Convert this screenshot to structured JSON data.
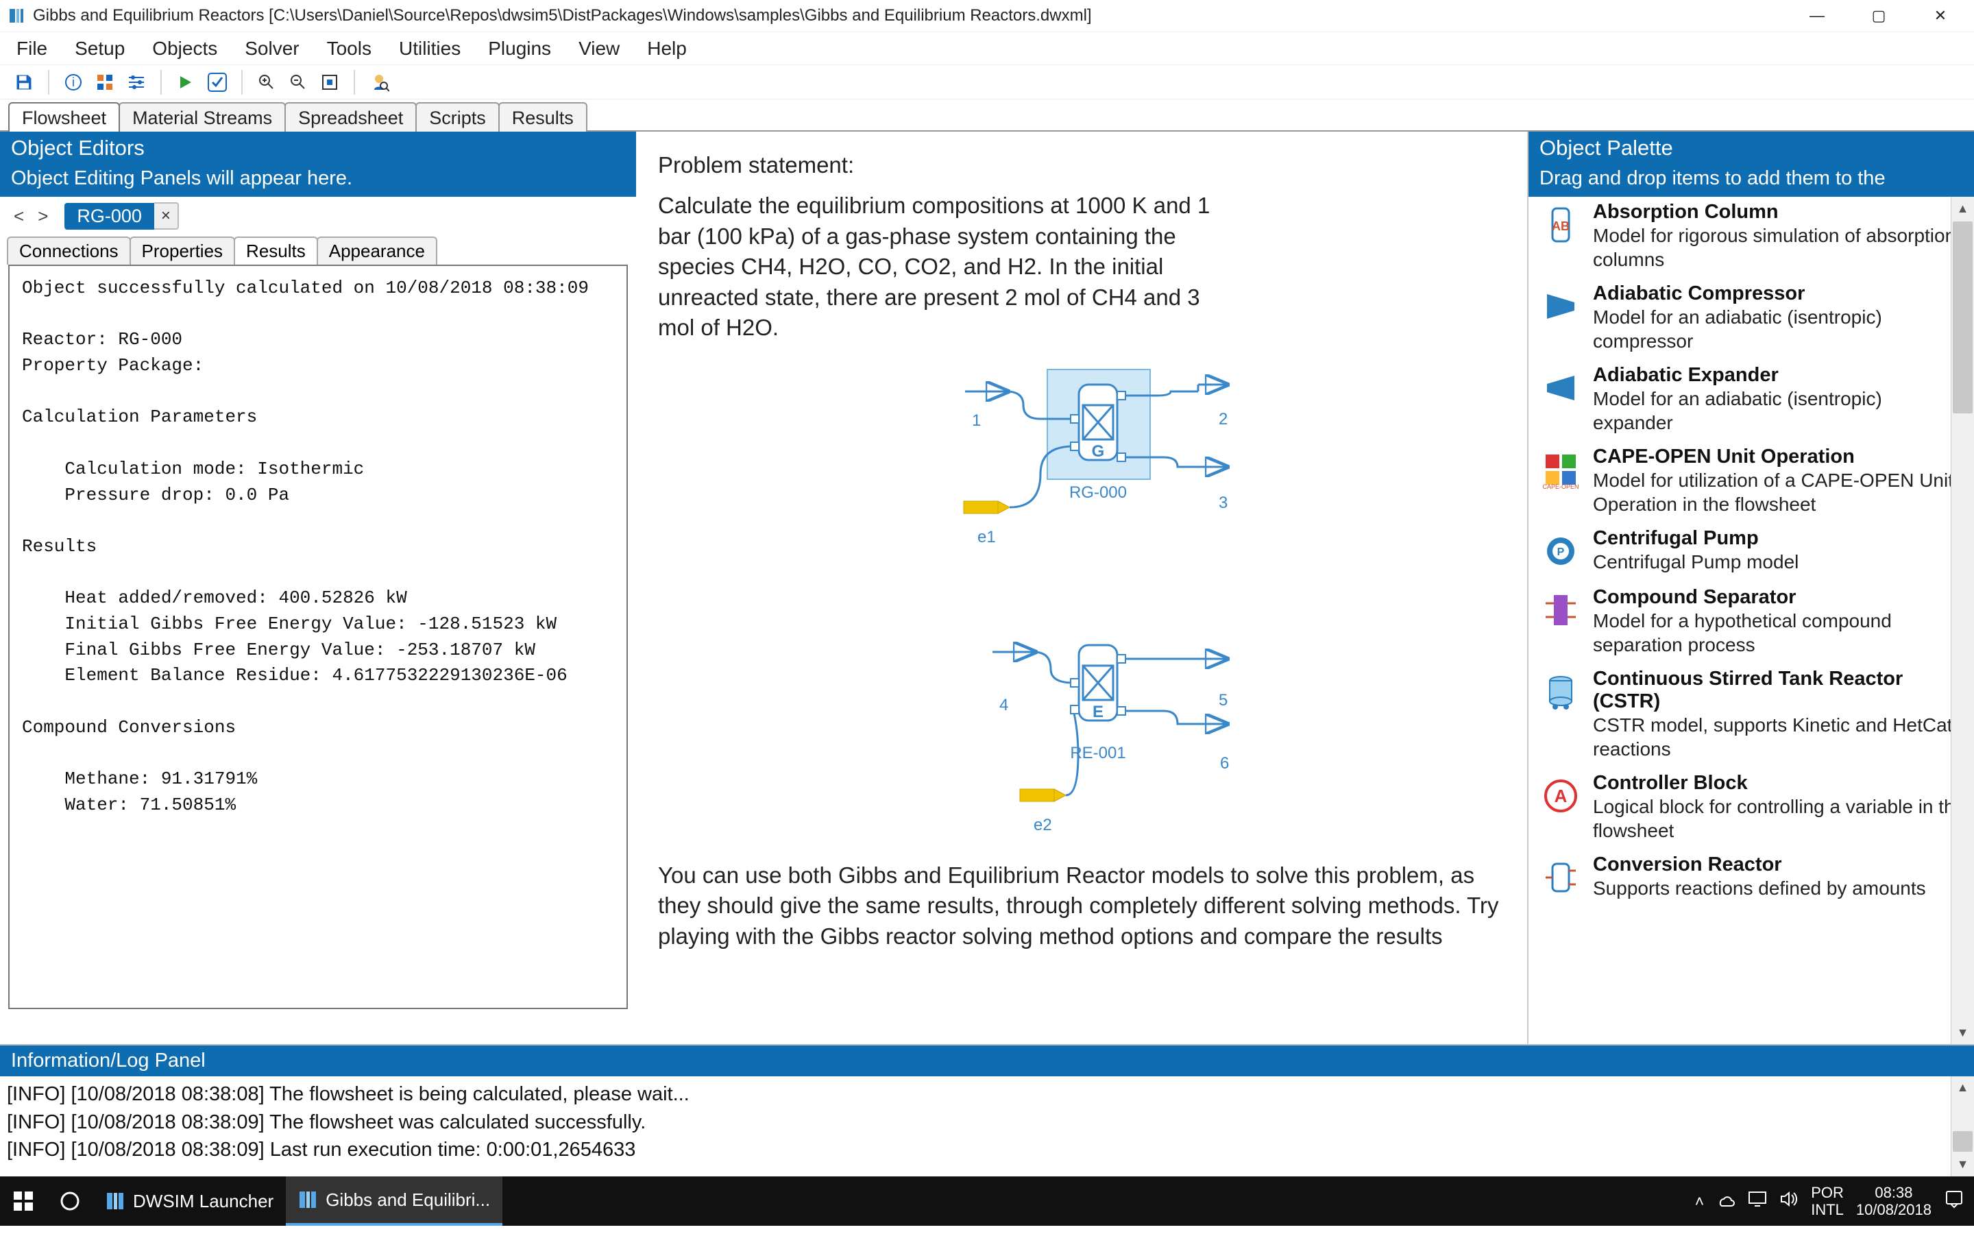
{
  "window": {
    "title": "Gibbs and Equilibrium Reactors [C:\\Users\\Daniel\\Source\\Repos\\dwsim5\\DistPackages\\Windows\\samples\\Gibbs and Equilibrium Reactors.dwxml]"
  },
  "menus": [
    "File",
    "Setup",
    "Objects",
    "Solver",
    "Tools",
    "Utilities",
    "Plugins",
    "View",
    "Help"
  ],
  "main_tabs": [
    "Flowsheet",
    "Material Streams",
    "Spreadsheet",
    "Scripts",
    "Results"
  ],
  "main_tab_active": 0,
  "editor": {
    "header": "Object Editors",
    "sub": "Object Editing Panels will appear here.",
    "nav_label": "RG-000",
    "sub_tabs": [
      "Connections",
      "Properties",
      "Results",
      "Appearance"
    ],
    "sub_tab_active": 2,
    "results_text": "Object successfully calculated on 10/08/2018 08:38:09\n\nReactor: RG-000\nProperty Package:\n\nCalculation Parameters\n\n    Calculation mode: Isothermic\n    Pressure drop: 0.0 Pa\n\nResults\n\n    Heat added/removed: 400.52826 kW\n    Initial Gibbs Free Energy Value: -128.51523 kW\n    Final Gibbs Free Energy Value: -253.18707 kW\n    Element Balance Residue: 4.6177532229130236E-06\n\nCompound Conversions\n\n    Methane: 91.31791%\n    Water: 71.50851%"
  },
  "problem": {
    "title": "Problem statement:",
    "p1": "Calculate the equilibrium compositions at 1000 K and 1 bar (100 kPa) of a gas-phase system containing the species CH4, H2O, CO, CO2, and H2. In the initial unreacted state, there are present 2 mol of CH4 and 3 mol of H2O.",
    "p2": "You can use both Gibbs and Equilibrium Reactor models to solve this problem, as they should give the same results, through completely different solving methods. Try playing with the Gibbs reactor solving method options and compare the results",
    "labels": {
      "s1": "1",
      "s2": "2",
      "s3": "3",
      "s4": "4",
      "s5": "5",
      "s6": "6",
      "e1": "e1",
      "e2": "e2",
      "rg": "RG-000",
      "re": "RE-001",
      "g": "G",
      "e": "E"
    }
  },
  "palette": {
    "header": "Object Palette",
    "sub": "Drag and drop items to add them to the",
    "items": [
      {
        "title": "Absorption Column",
        "desc": "Model for rigorous simulation of absorption columns",
        "icon": "abs"
      },
      {
        "title": "Adiabatic Compressor",
        "desc": "Model for an adiabatic (isentropic) compressor",
        "icon": "comp"
      },
      {
        "title": "Adiabatic Expander",
        "desc": "Model for an adiabatic (isentropic) expander",
        "icon": "exp"
      },
      {
        "title": "CAPE-OPEN Unit Operation",
        "desc": "Model for utilization of a CAPE-OPEN Unit Operation in the flowsheet",
        "icon": "cape"
      },
      {
        "title": "Centrifugal Pump",
        "desc": "Centrifugal Pump model",
        "icon": "pump"
      },
      {
        "title": "Compound Separator",
        "desc": "Model for a hypothetical compound separation process",
        "icon": "sep"
      },
      {
        "title": "Continuous Stirred Tank Reactor (CSTR)",
        "desc": "CSTR model, supports Kinetic and HetCat reactions",
        "icon": "cstr"
      },
      {
        "title": "Controller Block",
        "desc": "Logical block for controlling a variable in the flowsheet",
        "icon": "ctrl"
      },
      {
        "title": "Conversion Reactor",
        "desc": "Supports reactions defined by amounts",
        "icon": "conv"
      }
    ]
  },
  "log": {
    "header": "Information/Log Panel",
    "lines": [
      "[INFO] [10/08/2018 08:38:08] The flowsheet is being calculated, please wait...",
      "[INFO] [10/08/2018 08:38:09] The flowsheet was calculated successfully.",
      "[INFO] [10/08/2018 08:38:09] Last run execution time: 0:00:01,2654633"
    ]
  },
  "taskbar": {
    "items": [
      "DWSIM Launcher",
      "Gibbs and Equilibri..."
    ],
    "lang": "POR",
    "kb": "INTL",
    "time": "08:38",
    "date": "10/08/2018"
  },
  "colors": {
    "brand": "#0e6db0",
    "stream": "#3a87c9",
    "energy": "#f0c300",
    "text": "#222222"
  }
}
